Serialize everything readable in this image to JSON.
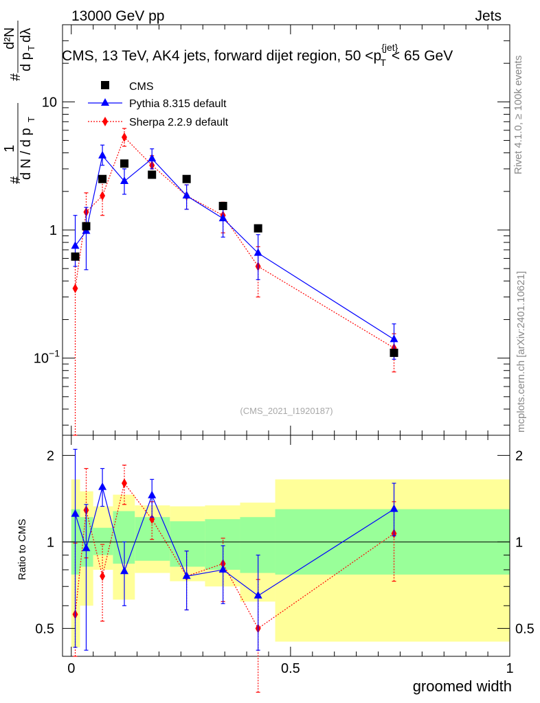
{
  "header": {
    "left": "13000 GeV pp",
    "right": "Jets"
  },
  "title": "CMS, 13 TeV, AK4 jets, forward dijet region, 50 <p",
  "title_sup": "{jet}",
  "title_sub": "T",
  "title_end": "< 65 GeV",
  "side_labels": {
    "rivet": "Rivet 4.1.0, ≥ 100k events",
    "mcplots": "mcplots.cern.ch [arXiv:2401.10621]"
  },
  "watermark": "(CMS_2021_I1920187)",
  "ylabel_ratio": "Ratio to CMS",
  "xlabel": "groomed width",
  "colors": {
    "data": "#000000",
    "pythia": "#0000ff",
    "sherpa": "#ff0000",
    "band_inner": "#99ff99",
    "band_outer": "#ffff99"
  },
  "chart_data": [
    {
      "type": "scatter",
      "panel": "main",
      "xlim": [
        -0.02,
        1.0
      ],
      "ylim": [
        0.025,
        40
      ],
      "ylog": true,
      "x_ticks": [
        0,
        0.5,
        1
      ],
      "y_tick_labels": [
        "10^-1",
        "1",
        "10"
      ],
      "legend_position": "top-left",
      "series": [
        {
          "name": "CMS",
          "marker": "square",
          "x": [
            0.009,
            0.034,
            0.071,
            0.121,
            0.184,
            0.263,
            0.346,
            0.426,
            0.736
          ],
          "y": [
            0.62,
            1.07,
            2.5,
            3.3,
            2.7,
            2.5,
            1.54,
            1.03,
            0.11
          ]
        },
        {
          "name": "Pythia 8.315 default",
          "marker": "triangle",
          "line": "solid",
          "x": [
            0.009,
            0.034,
            0.071,
            0.121,
            0.184,
            0.263,
            0.346,
            0.426,
            0.736
          ],
          "y": [
            0.75,
            0.98,
            3.8,
            2.4,
            3.6,
            1.85,
            1.23,
            0.66,
            0.14
          ],
          "err_lo": [
            0.52,
            0.49,
            3.2,
            1.9,
            3.0,
            1.45,
            0.88,
            0.41,
            0.098
          ],
          "err_hi": [
            1.3,
            1.5,
            4.6,
            3.0,
            4.3,
            2.25,
            1.58,
            0.92,
            0.185
          ]
        },
        {
          "name": "Sherpa 2.2.9 default",
          "marker": "diamond",
          "line": "dotted",
          "x": [
            0.009,
            0.034,
            0.071,
            0.121,
            0.184,
            0.263,
            0.346,
            0.426,
            0.736
          ],
          "y": [
            0.35,
            1.38,
            1.85,
            5.3,
            3.2,
            1.85,
            1.3,
            0.52,
            0.12
          ],
          "err_lo": [
            0.025,
            0.95,
            1.3,
            4.5,
            2.7,
            1.45,
            0.95,
            0.3,
            0.078
          ],
          "err_hi": [
            0.62,
            1.95,
            2.4,
            6.2,
            3.8,
            2.25,
            1.65,
            0.74,
            0.155
          ]
        }
      ]
    },
    {
      "type": "scatter",
      "panel": "ratio",
      "ylabel": "Ratio to CMS",
      "xlabel": "groomed width",
      "xlim": [
        -0.02,
        1.0
      ],
      "ylim": [
        0.4,
        2.35
      ],
      "ylog": true,
      "y_ticks": [
        0.5,
        1,
        2
      ],
      "x_ticks": [
        0,
        0.5,
        1
      ],
      "bands": [
        {
          "x0": 0.0,
          "x1": 0.02,
          "inner": [
            0.77,
            1.3
          ],
          "outer": [
            0.43,
            1.65
          ]
        },
        {
          "x0": 0.02,
          "x1": 0.05,
          "inner": [
            0.82,
            1.22
          ],
          "outer": [
            0.6,
            1.5
          ]
        },
        {
          "x0": 0.05,
          "x1": 0.095,
          "inner": [
            0.9,
            1.12
          ],
          "outer": [
            0.8,
            1.33
          ]
        },
        {
          "x0": 0.095,
          "x1": 0.145,
          "inner": [
            0.84,
            1.28
          ],
          "outer": [
            0.63,
            1.46
          ]
        },
        {
          "x0": 0.145,
          "x1": 0.225,
          "inner": [
            0.86,
            1.22
          ],
          "outer": [
            0.78,
            1.34
          ]
        },
        {
          "x0": 0.225,
          "x1": 0.305,
          "inner": [
            0.82,
            1.18
          ],
          "outer": [
            0.73,
            1.33
          ]
        },
        {
          "x0": 0.305,
          "x1": 0.385,
          "inner": [
            0.8,
            1.2
          ],
          "outer": [
            0.7,
            1.34
          ]
        },
        {
          "x0": 0.385,
          "x1": 0.465,
          "inner": [
            0.78,
            1.22
          ],
          "outer": [
            0.62,
            1.37
          ]
        },
        {
          "x0": 0.465,
          "x1": 1.0,
          "inner": [
            0.77,
            1.3
          ],
          "outer": [
            0.45,
            1.65
          ]
        }
      ],
      "series": [
        {
          "name": "Pythia 8.315 default",
          "x": [
            0.009,
            0.034,
            0.071,
            0.121,
            0.184,
            0.263,
            0.346,
            0.426,
            0.736
          ],
          "y": [
            1.25,
            0.95,
            1.55,
            0.79,
            1.45,
            0.76,
            0.8,
            0.65,
            1.3
          ],
          "err_lo": [
            0.43,
            0.42,
            1.33,
            0.6,
            1.22,
            0.58,
            0.61,
            0.42,
            1.05
          ],
          "err_hi": [
            2.1,
            1.35,
            1.8,
            1.0,
            1.65,
            0.93,
            0.97,
            0.9,
            1.6
          ]
        },
        {
          "name": "Sherpa 2.2.9 default",
          "x": [
            0.009,
            0.034,
            0.071,
            0.121,
            0.184,
            0.263,
            0.346,
            0.426,
            0.736
          ],
          "y": [
            0.56,
            1.29,
            0.76,
            1.6,
            1.2,
            0.76,
            0.84,
            0.5,
            1.07
          ],
          "err_lo": [
            0.4,
            0.88,
            0.53,
            1.35,
            1.02,
            0.58,
            0.62,
            0.3,
            0.73
          ],
          "err_hi": [
            0.99,
            1.8,
            0.98,
            1.85,
            1.38,
            0.93,
            1.03,
            0.74,
            1.38
          ]
        }
      ]
    }
  ]
}
